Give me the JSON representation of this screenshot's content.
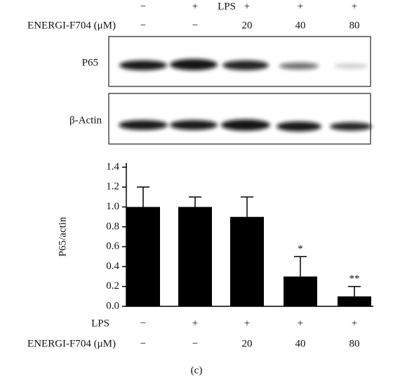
{
  "blot": {
    "conditions": [
      {
        "name": "LPS",
        "labels": [
          "−",
          "+",
          "+",
          "+",
          "+"
        ]
      },
      {
        "name": "ENERGI-F704 (μM)",
        "labels": [
          "−",
          "−",
          "20",
          "40",
          "80"
        ]
      }
    ],
    "bands": [
      "P65",
      "β-Actin"
    ]
  },
  "chart_data": {
    "type": "bar",
    "y_label": "P65/actin",
    "values": [
      1.0,
      1.0,
      0.9,
      0.3,
      0.1
    ],
    "errors": [
      0.2,
      0.1,
      0.2,
      0.2,
      0.1
    ],
    "value_annotations": [
      null,
      null,
      null,
      "*",
      "**"
    ],
    "color": "#000000",
    "ylim": [
      0,
      1.4
    ],
    "yticks": [
      {
        "value": 0,
        "label": "0.0"
      },
      0.2,
      0.4,
      0.6,
      0.8,
      {
        "value": 1,
        "label": "1.0"
      },
      1.2,
      1.4
    ],
    "conditions": [
      {
        "name": "LPS",
        "labels": [
          "−",
          "+",
          "+",
          "+",
          "+"
        ]
      },
      {
        "name": "ENERGI-F704 (μM)",
        "labels": [
          "−",
          "−",
          "20",
          "40",
          "80"
        ]
      }
    ]
  },
  "caption": "(c)"
}
